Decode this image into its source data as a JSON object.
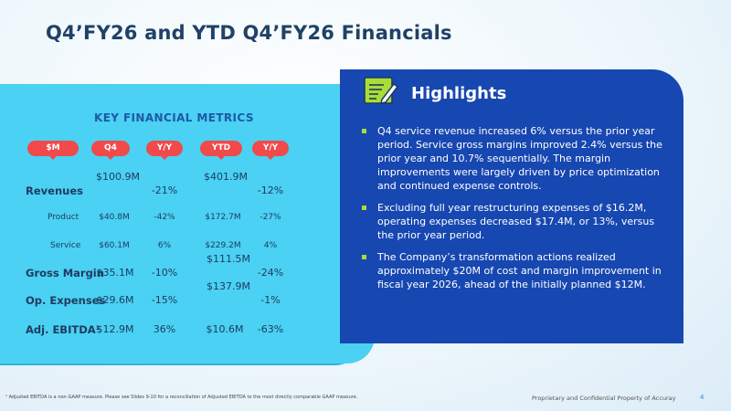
{
  "slide": {
    "title": "Q4’FY26 and YTD Q4’FY26 Financials",
    "page_number": "4",
    "footer_right": "Proprietary and Confidential Property of Accuray",
    "footnote": "¹ Adjusted EBITDA is a non-GAAP measure. Please see Slides 9-10 for a reconciliation of Adjusted EBITDA to the most directly comparable GAAP measure."
  },
  "metrics": {
    "title": "KEY FINANCIAL METRICS",
    "headers": [
      "$M",
      "Q4",
      "Y/Y",
      "YTD",
      "Y/Y"
    ],
    "rows": [
      {
        "label": "Revenues",
        "q4": "$100.9M",
        "q4_yy": "-21%",
        "ytd": "$401.9M",
        "ytd_yy": "-12%"
      },
      {
        "label": "Product",
        "q4": "$40.8M",
        "q4_yy": "-42%",
        "ytd": "$172.7M",
        "ytd_yy": "-27%"
      },
      {
        "label": "Service",
        "q4": "$60.1M",
        "q4_yy": "6%",
        "ytd": "$229.2M",
        "ytd_yy": "4%"
      },
      {
        "label": "Gross Margin",
        "q4": "$35.1M",
        "q4_yy": "-10%",
        "ytd": "$111.5M",
        "ytd_yy": "-24%"
      },
      {
        "label": "Op. Expenses",
        "q4": "$29.6M",
        "q4_yy": "-15%",
        "ytd": "$137.9M",
        "ytd_yy": "-1%"
      },
      {
        "label": "Adj. EBITDA¹",
        "q4": "$12.9M",
        "q4_yy": "36%",
        "ytd": "$10.6M",
        "ytd_yy": "-63%"
      }
    ]
  },
  "highlights": {
    "title": "Highlights",
    "icon": "notepad-pencil-icon",
    "bullets": [
      "Q4 service revenue increased 6% versus the prior year period. Service gross margins improved 2.4% versus the prior year and 10.7% sequentially. The margin improvements were largely driven by price optimization and continued expense controls.",
      "Excluding full year restructuring expenses of $16.2M, operating expenses decreased $17.4M, or 13%, versus the prior year period.",
      "The Company’s transformation actions realized approximately $20M of cost and margin improvement in fiscal year 2026, ahead of the initially planned $12M."
    ]
  },
  "colors": {
    "title": "#1f4266",
    "panel_cyan": "#4ad1f3",
    "header_pill_red": "#f04a4a",
    "highlights_blue": "#1747b0",
    "bullet_green": "#a9dd36"
  }
}
